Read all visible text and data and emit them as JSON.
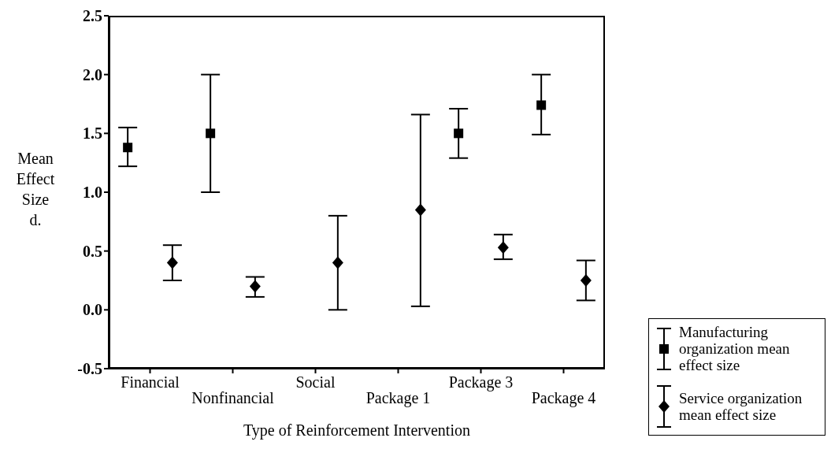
{
  "chart_data": {
    "type": "scatter",
    "xlabel": "Type of Reinforcement Intervention",
    "ylabel": "Mean Effect Size d.",
    "categories": [
      "Financial",
      "Nonfinancial",
      "Social",
      "Package 1",
      "Package 3",
      "Package 4"
    ],
    "series": [
      {
        "name": "Manufacturing organization mean effect size",
        "color": "#000000",
        "marker": "square",
        "values": [
          1.38,
          1.5,
          null,
          null,
          1.5,
          1.74
        ],
        "errors": [
          [
            1.22,
            1.55
          ],
          [
            1.0,
            2.0
          ],
          null,
          null,
          [
            1.29,
            1.71
          ],
          [
            1.49,
            2.0
          ]
        ]
      },
      {
        "name": "Service organization mean effect size",
        "color": "#000000",
        "marker": "diamond",
        "values": [
          0.4,
          0.2,
          0.4,
          0.85,
          0.53,
          0.25
        ],
        "errors": [
          [
            0.25,
            0.55
          ],
          [
            0.11,
            0.28
          ],
          [
            0.0,
            0.8
          ],
          [
            0.03,
            1.66
          ],
          [
            0.43,
            0.64
          ],
          [
            0.08,
            0.42
          ]
        ]
      }
    ],
    "ylim": [
      -0.5,
      2.5
    ],
    "yticks": [
      {
        "value": -0.5,
        "label": "-0.5"
      },
      {
        "value": 0,
        "label": "0.0"
      },
      {
        "value": 0.5,
        "label": "0.5"
      },
      {
        "value": 1,
        "label": "1.0"
      },
      {
        "value": 1.5,
        "label": "1.5"
      },
      {
        "value": 2,
        "label": "2.0"
      },
      {
        "value": 2.5,
        "label": "2.5"
      }
    ],
    "legend": "bottom right",
    "grid": false
  }
}
